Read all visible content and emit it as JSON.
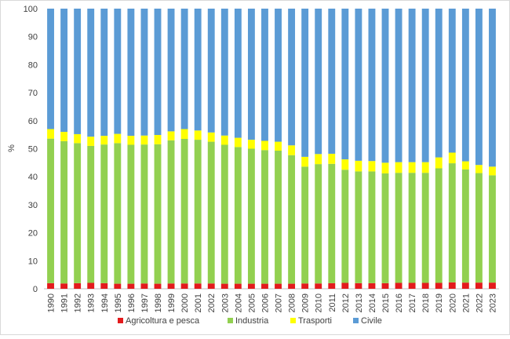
{
  "chart_data": {
    "type": "bar",
    "stacked": true,
    "title": "",
    "xlabel": "",
    "ylabel": "%",
    "ylim": [
      0,
      100
    ],
    "yticks": [
      0,
      10,
      20,
      30,
      40,
      50,
      60,
      70,
      80,
      90,
      100
    ],
    "grid": false,
    "legend_position": "bottom",
    "categories": [
      "1990",
      "1991",
      "1992",
      "1993",
      "1994",
      "1995",
      "1996",
      "1997",
      "1998",
      "1999",
      "2000",
      "2001",
      "2002",
      "2003",
      "2004",
      "2005",
      "2006",
      "2007",
      "2008",
      "2009",
      "2010",
      "2011",
      "2012",
      "2013",
      "2014",
      "2015",
      "2016",
      "2017",
      "2018",
      "2019",
      "2020",
      "2021",
      "2022",
      "2023"
    ],
    "series": [
      {
        "name": "Agricoltura e pesca",
        "color": "#e31a1c",
        "values": [
          2.0,
          1.9,
          2.0,
          2.1,
          2.0,
          1.8,
          1.8,
          1.9,
          1.8,
          1.9,
          1.9,
          1.9,
          1.9,
          1.8,
          1.8,
          1.8,
          1.8,
          1.8,
          1.8,
          1.9,
          1.9,
          2.0,
          2.1,
          2.0,
          2.0,
          2.0,
          2.1,
          2.1,
          2.1,
          2.1,
          2.3,
          2.2,
          2.2,
          2.2
        ]
      },
      {
        "name": "Industria",
        "color": "#92d050",
        "values": [
          51.6,
          50.8,
          50.0,
          48.9,
          49.5,
          50.2,
          49.6,
          49.6,
          49.8,
          51.1,
          51.6,
          51.3,
          50.6,
          49.6,
          48.8,
          48.2,
          47.7,
          47.5,
          45.9,
          41.7,
          42.6,
          42.6,
          40.4,
          39.9,
          39.9,
          39.2,
          39.3,
          39.3,
          39.3,
          40.9,
          42.5,
          40.4,
          39.1,
          38.3
        ]
      },
      {
        "name": "Trasporti",
        "color": "#ffff00",
        "values": [
          3.4,
          3.3,
          3.2,
          3.3,
          3.1,
          3.3,
          3.2,
          3.2,
          3.3,
          3.2,
          3.5,
          3.3,
          3.3,
          3.3,
          3.3,
          3.2,
          3.3,
          3.2,
          3.5,
          3.5,
          3.6,
          3.6,
          3.7,
          3.8,
          3.7,
          3.8,
          3.8,
          3.8,
          3.8,
          3.9,
          3.8,
          2.9,
          2.9,
          3.1
        ]
      },
      {
        "name": "Civile",
        "color": "#5b9bd5",
        "values": [
          43.0,
          44.0,
          44.8,
          45.7,
          45.4,
          44.7,
          45.4,
          45.3,
          45.1,
          43.8,
          43.0,
          43.5,
          44.2,
          45.3,
          46.1,
          46.8,
          47.2,
          47.5,
          48.8,
          52.9,
          51.9,
          51.8,
          53.8,
          54.3,
          54.4,
          55.0,
          54.8,
          54.8,
          54.8,
          53.1,
          51.4,
          54.5,
          55.8,
          56.4
        ]
      }
    ]
  }
}
